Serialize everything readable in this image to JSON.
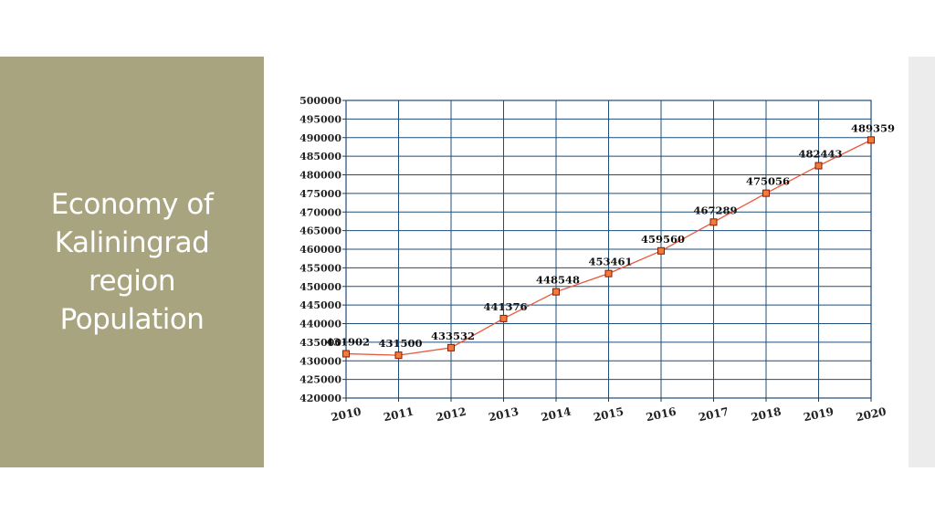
{
  "slide": {
    "title_lines": [
      "Economy of",
      "Kaliningrad",
      "region",
      "Population"
    ]
  },
  "colors": {
    "panel": "#a8a47f",
    "grid": "#1f4e79",
    "line": "#e8573a",
    "marker_fill": "#f07b3a",
    "marker_stroke": "#8b1a00",
    "strip": "#ececec"
  },
  "chart_data": {
    "type": "line",
    "x": [
      "2010",
      "2011",
      "2012",
      "2013",
      "2014",
      "2015",
      "2016",
      "2017",
      "2018",
      "2019",
      "2020"
    ],
    "values": [
      431902,
      431500,
      433532,
      441376,
      448548,
      453461,
      459560,
      467289,
      475056,
      482443,
      489359
    ],
    "data_labels": [
      "431902",
      "431500",
      "433532",
      "441376",
      "448548",
      "453461",
      "459560",
      "467289",
      "475056",
      "482443",
      "489359"
    ],
    "ylim": [
      420000,
      500000
    ],
    "yticks": [
      "420000",
      "425000",
      "430000",
      "435000",
      "440000",
      "445000",
      "450000",
      "455000",
      "460000",
      "465000",
      "470000",
      "475000",
      "480000",
      "485000",
      "490000",
      "495000",
      "500000"
    ],
    "grid": true,
    "title": "",
    "xlabel": "",
    "ylabel": ""
  }
}
